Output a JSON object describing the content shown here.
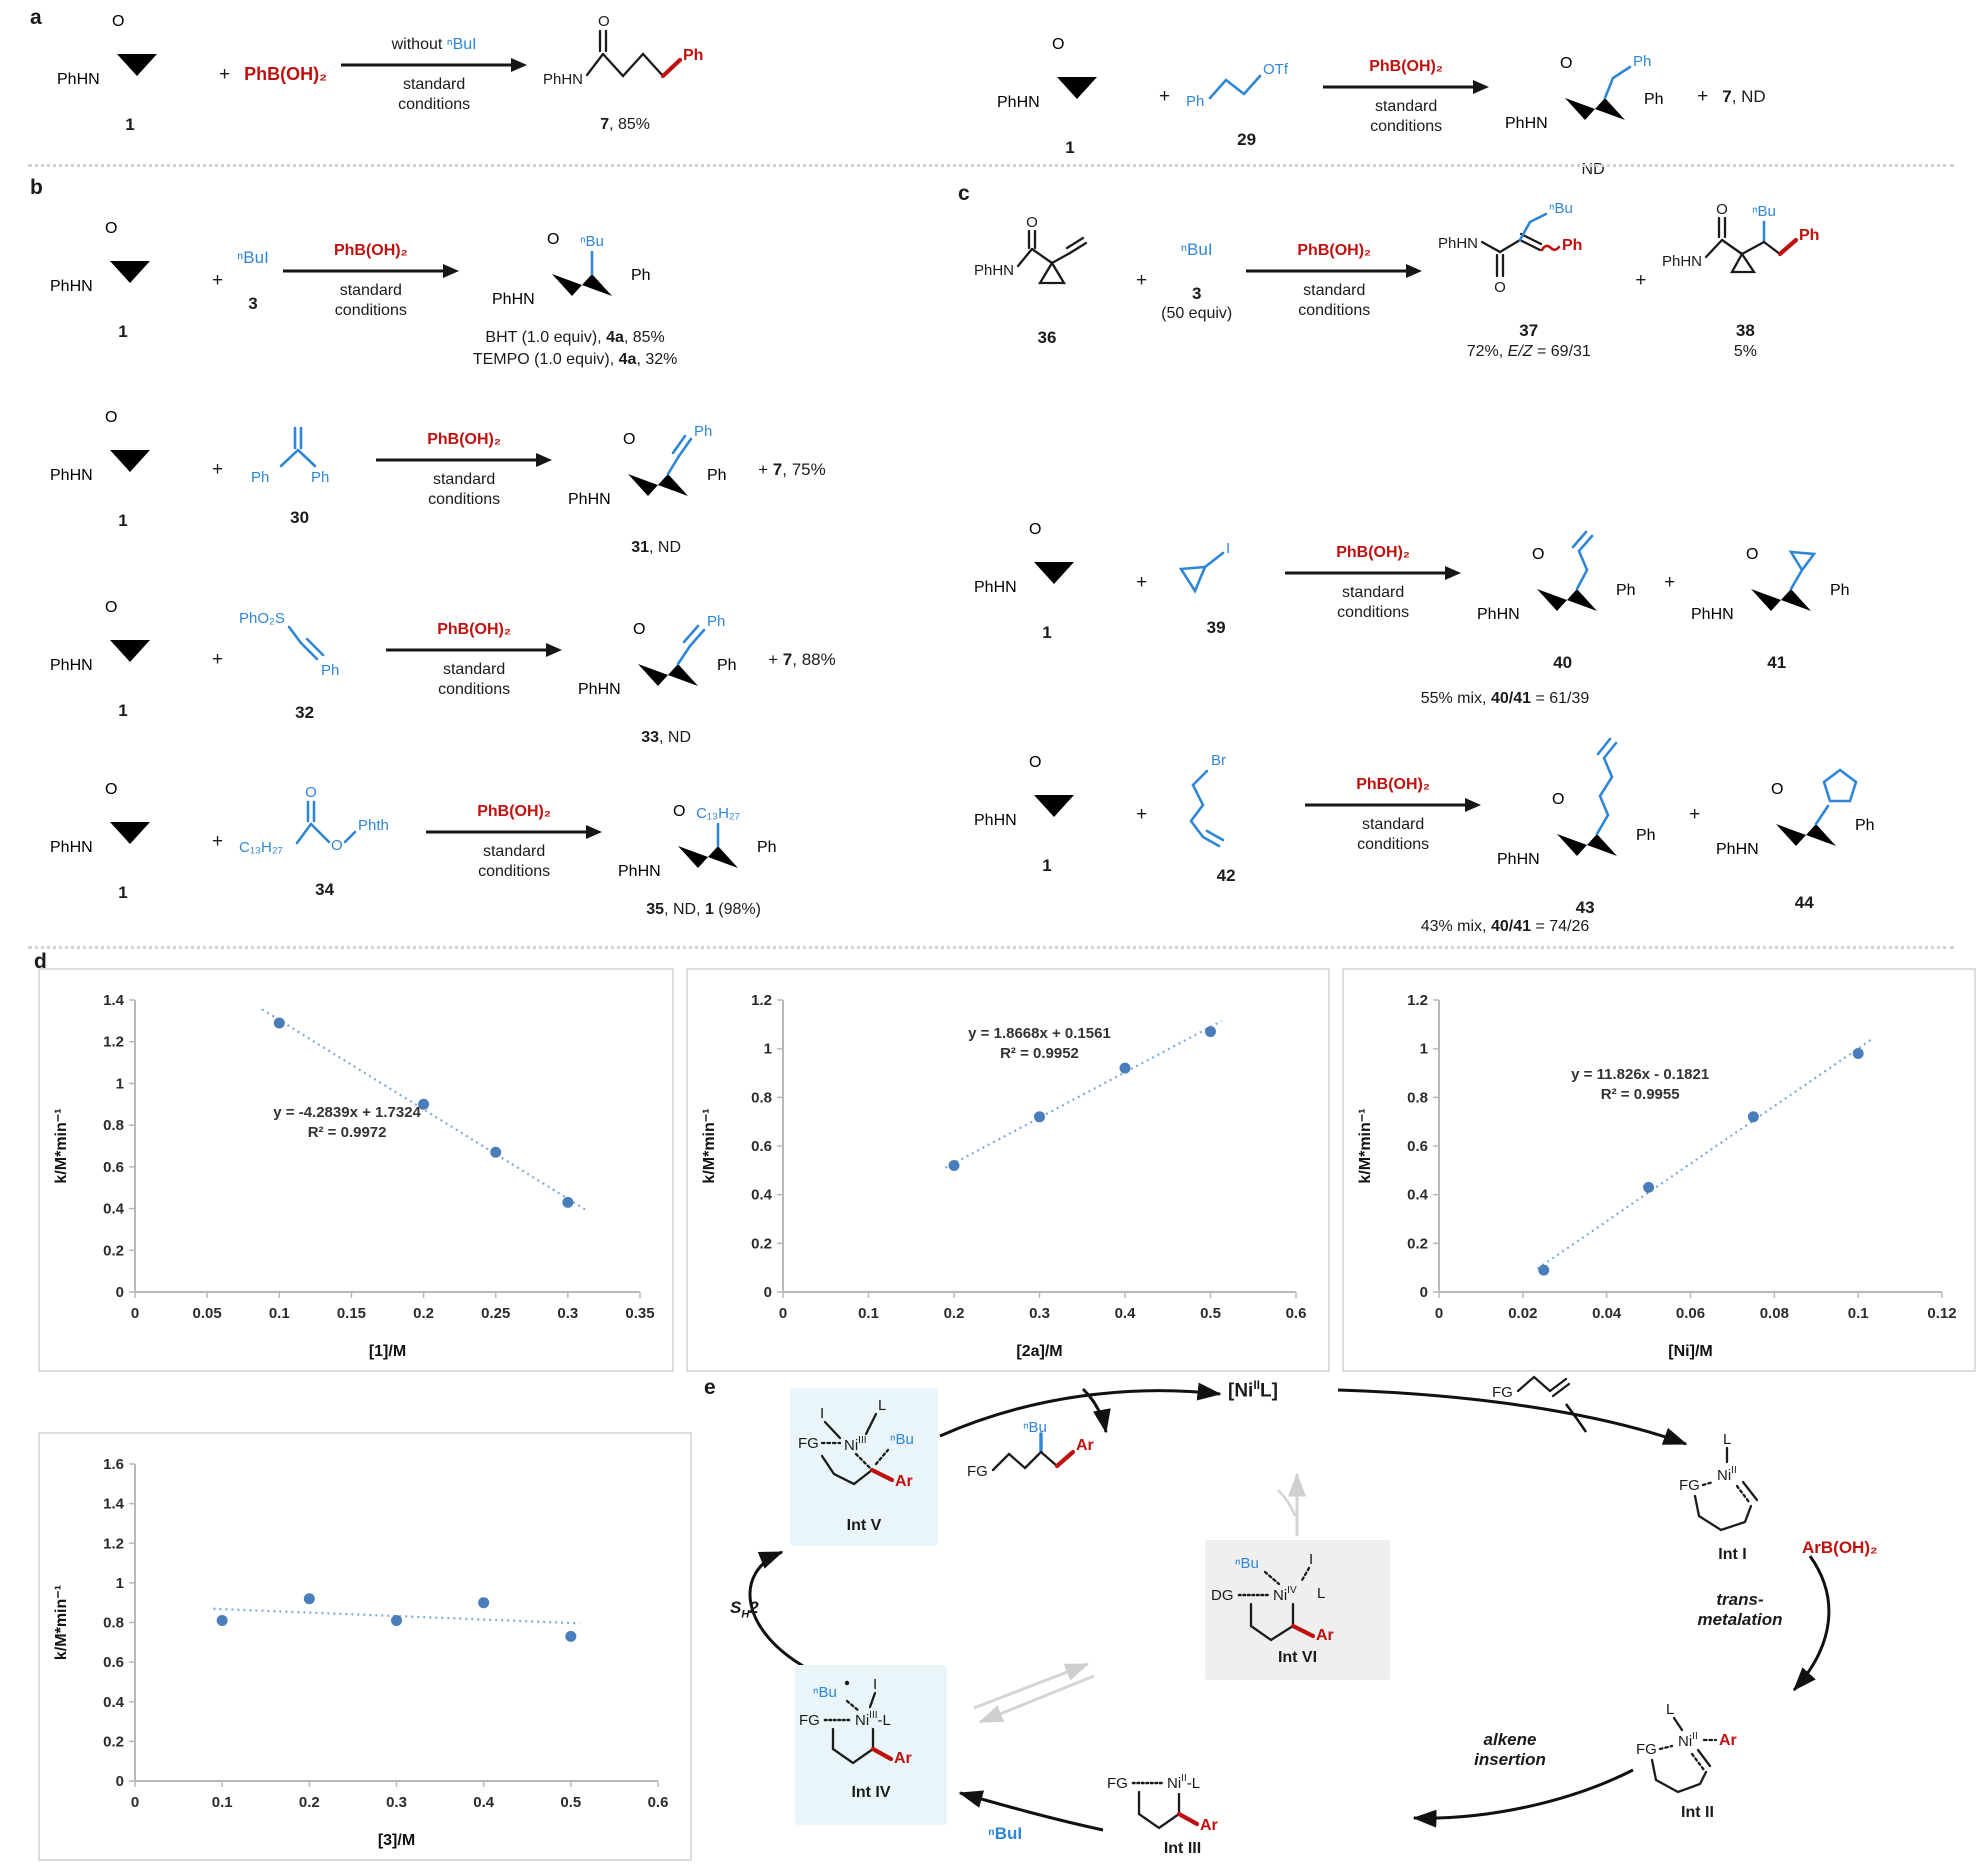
{
  "colors": {
    "blue": "#2f86d6",
    "red": "#bf1210",
    "black": "#1b1b1b",
    "chart_point": "#4a7ebb",
    "chart_trend": "#7fa8d8",
    "box_blue": "#e9f5f9",
    "box_gray": "#efefef",
    "gray_arrow": "#d2d2d2"
  },
  "common": {
    "plus": "+",
    "standard": "standard",
    "conditions": "conditions",
    "phb": "PhB(OH)₂",
    "phhn": "PhHN",
    "o": "O",
    "ph": "Ph",
    "nbu": "ⁿBu",
    "nbui": "ⁿBuI",
    "fg": "FG",
    "ar": "Ar",
    "l": "L",
    "i": "I",
    "dg": "DG",
    "ni": "Ni",
    "dashl": "-L"
  },
  "panel_a": {
    "label": "a",
    "left": {
      "mnum": "1",
      "above_pre": "without ",
      "above_blue": "ⁿBuI",
      "ynum": "7",
      "yrest": ", 85%"
    },
    "right": {
      "mnum": "1",
      "rnum": "29",
      "ph": "Ph",
      "otf": "OTf",
      "nd": "ND",
      "ynum": "7",
      "yrest": ", ND"
    }
  },
  "panel_b": {
    "label": "b",
    "row1": {
      "rg": "ⁿBuI",
      "rnum": "3",
      "cap1": [
        "BHT (1.0 equiv), ",
        "4a",
        ", 85%"
      ],
      "cap2": [
        "TEMPO (1.0 equiv), ",
        "4a",
        ", 32%"
      ]
    },
    "row2": {
      "rnum": "30",
      "pnum": "31",
      "pext": ", ND",
      "sp": "+",
      "sb": "7",
      "sr": ", 75%"
    },
    "row3": {
      "rg": "PhO₂S",
      "rnum": "32",
      "pnum": "33",
      "pext": ", ND",
      "sp": "+",
      "sb": "7",
      "sr": ", 88%"
    },
    "row4": {
      "rg": "C₁₃H₂₇",
      "phth": "Phth",
      "rnum": "34",
      "cap": [
        "35",
        ", ND, ",
        "1",
        " (98%)"
      ]
    }
  },
  "panel_c": {
    "label": "c",
    "row1": {
      "mnum": "36",
      "rg": "ⁿBuI",
      "rnum": "3",
      "requiv": "(50 equiv)",
      "p1num": "37",
      "cap1": [
        "72%, ",
        "E/Z",
        " = 69/31"
      ],
      "p2num": "38",
      "cap2": "5%"
    },
    "row2": {
      "mnum": "1",
      "rg": "I",
      "rnum": "39",
      "p1num": "40",
      "p2num": "41",
      "cap": [
        "55% mix, ",
        "40/41",
        " = 61/39"
      ]
    },
    "row3": {
      "mnum": "1",
      "rg": "Br",
      "rnum": "42",
      "p1num": "43",
      "p2num": "44",
      "cap": [
        "43% mix, ",
        "40/41",
        " = 74/26"
      ]
    }
  },
  "panel_d": {
    "label": "d"
  },
  "chart_data": [
    {
      "type": "scatter",
      "title": "",
      "xlabel": "[1]/M",
      "ylabel": "k/M*min⁻¹",
      "xlim": [
        0,
        0.35
      ],
      "ylim": [
        0,
        1.4
      ],
      "xticks": [
        "0",
        "0.05",
        "0.1",
        "0.15",
        "0.2",
        "0.25",
        "0.3",
        "0.35"
      ],
      "yticks": [
        "0",
        "0.2",
        "0.4",
        "0.6",
        "0.8",
        "1",
        "1.2",
        "1.4"
      ],
      "x": [
        0.1,
        0.2,
        0.25,
        0.3
      ],
      "y": [
        1.29,
        0.9,
        0.67,
        0.43
      ],
      "equation": "y = -4.2839x + 1.7324",
      "r2": "R² = 0.9972",
      "eq_pos": [
        0.42,
        0.4
      ],
      "trend": {
        "slope": -4.2839,
        "intercept": 1.7324,
        "x0": 0.088,
        "x1": 0.312
      },
      "grid": false,
      "legend": null
    },
    {
      "type": "scatter",
      "title": "",
      "xlabel": "[2a]/M",
      "ylabel": "k/M*min⁻¹",
      "xlim": [
        0,
        0.6
      ],
      "ylim": [
        0,
        1.2
      ],
      "xticks": [
        "0",
        "0.1",
        "0.2",
        "0.3",
        "0.4",
        "0.5",
        "0.6"
      ],
      "yticks": [
        "0",
        "0.2",
        "0.4",
        "0.6",
        "0.8",
        "1",
        "1.2"
      ],
      "x": [
        0.2,
        0.3,
        0.4,
        0.5
      ],
      "y": [
        0.52,
        0.72,
        0.92,
        1.07
      ],
      "equation": "y = 1.8668x + 0.1561",
      "r2": "R² = 0.9952",
      "eq_pos": [
        0.5,
        0.13
      ],
      "trend": {
        "slope": 1.8668,
        "intercept": 0.1561,
        "x0": 0.19,
        "x1": 0.513
      },
      "grid": false,
      "legend": null
    },
    {
      "type": "scatter",
      "title": "",
      "xlabel": "[Ni]/M",
      "ylabel": "k/M*min⁻¹",
      "xlim": [
        0,
        0.12
      ],
      "ylim": [
        0,
        1.2
      ],
      "xticks": [
        "0",
        "0.02",
        "0.04",
        "0.06",
        "0.08",
        "0.1",
        "0.12"
      ],
      "yticks": [
        "0",
        "0.2",
        "0.4",
        "0.6",
        "0.8",
        "1",
        "1.2"
      ],
      "x": [
        0.025,
        0.05,
        0.075,
        0.1
      ],
      "y": [
        0.09,
        0.43,
        0.72,
        0.98
      ],
      "equation": "y = 11.826x - 0.1821",
      "r2": "R² = 0.9955",
      "eq_pos": [
        0.4,
        0.27
      ],
      "trend": {
        "slope": 11.826,
        "intercept": -0.1821,
        "x0": 0.0235,
        "x1": 0.103
      },
      "grid": false,
      "legend": null
    },
    {
      "type": "scatter",
      "title": "",
      "xlabel": "[3]/M",
      "ylabel": "k/M*min⁻¹",
      "xlim": [
        0,
        0.6
      ],
      "ylim": [
        0,
        1.6
      ],
      "xticks": [
        "0",
        "0.1",
        "0.2",
        "0.3",
        "0.4",
        "0.5",
        "0.6"
      ],
      "yticks": [
        "0",
        "0.2",
        "0.4",
        "0.6",
        "0.8",
        "1",
        "1.2",
        "1.4",
        "1.6"
      ],
      "x": [
        0.1,
        0.2,
        0.3,
        0.4,
        0.5
      ],
      "y": [
        0.81,
        0.92,
        0.81,
        0.9,
        0.73
      ],
      "equation": null,
      "r2": null,
      "eq_pos": null,
      "trend": {
        "slope": -0.175,
        "intercept": 0.885,
        "x0": 0.09,
        "x1": 0.51
      },
      "grid": false,
      "legend": null
    }
  ],
  "panel_e": {
    "label": "e",
    "nil": [
      "[Ni",
      "II",
      "L]"
    ],
    "i1": "Int I",
    "i2": "Int II",
    "i3": "Int III",
    "i4": "Int IV",
    "i5": "Int V",
    "i6": "Int VI",
    "ox2": "II",
    "ox3": "III",
    "ox4": "IV",
    "sh": [
      "S",
      "H",
      "2"
    ],
    "trans1": "trans-",
    "trans2": "metalation",
    "alk1": "alkene",
    "alk2": "insertion",
    "nbui": "ⁿBuI",
    "arb": "ArB(OH)₂"
  }
}
